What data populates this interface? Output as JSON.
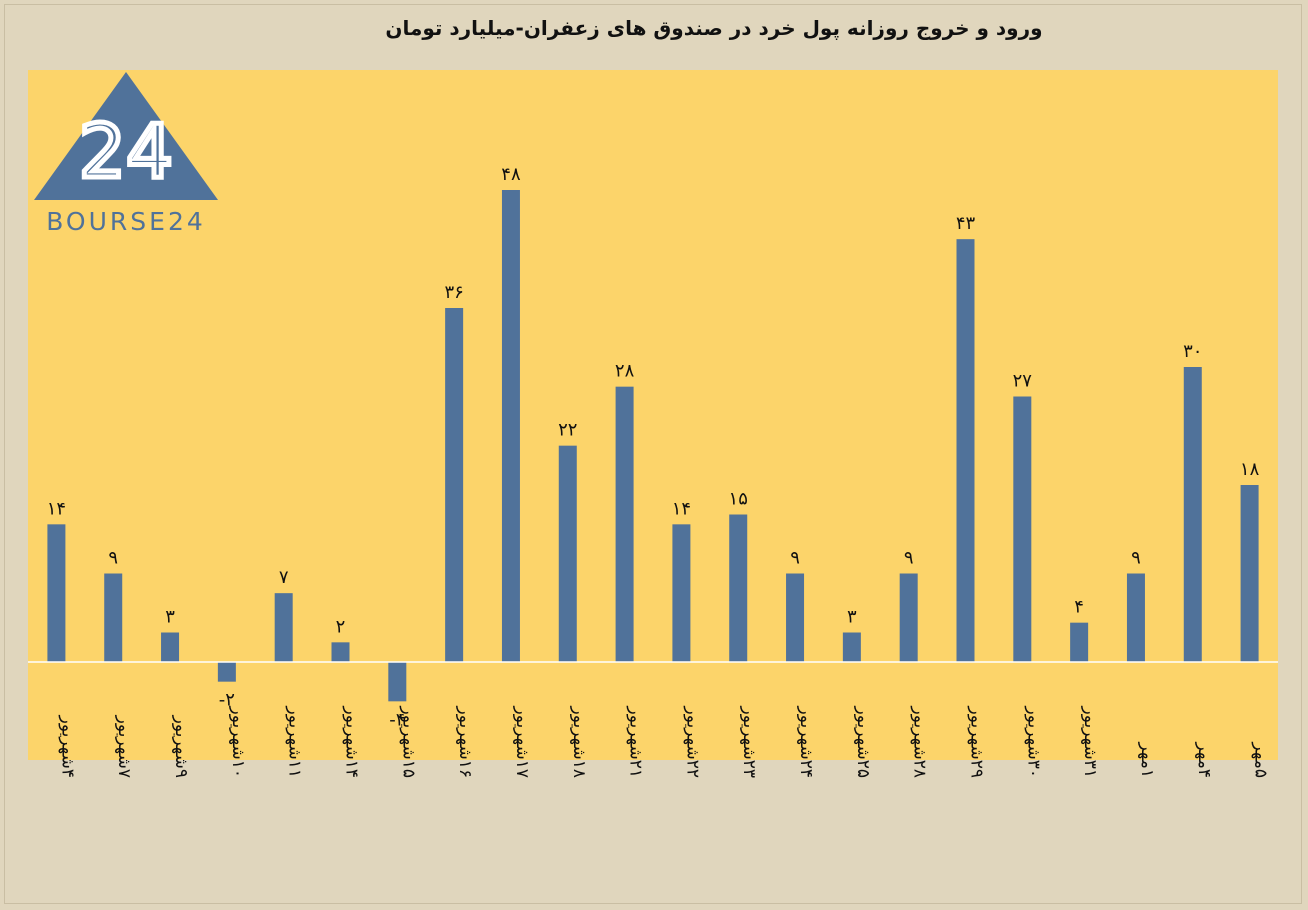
{
  "chart_data": {
    "type": "bar",
    "title": "ورود و خروج روزانه پول خرد در صندوق های زعفران-میلیارد تومان",
    "categories": [
      "۴شهریور",
      "۷شهریور",
      "۹شهریور",
      "۱۰شهریور",
      "۱۱شهریور",
      "۱۴شهریور",
      "۱۵شهریور",
      "۱۶شهریور",
      "۱۷شهریور",
      "۱۸شهریور",
      "۲۱شهریور",
      "۲۲شهریور",
      "۲۳شهریور",
      "۲۴شهریور",
      "۲۵شهریور",
      "۲۸شهریور",
      "۲۹شهریور",
      "۳۰شهریور",
      "۳۱شهریور",
      "۱مهر",
      "۴مهر",
      "۵مهر"
    ],
    "values": [
      14,
      9,
      3,
      -2,
      7,
      2,
      -4,
      36,
      48,
      22,
      28,
      14,
      15,
      9,
      3,
      9,
      43,
      27,
      4,
      9,
      30,
      18
    ],
    "data_labels": [
      "۱۴",
      "۹",
      "۳",
      "-۲",
      "۷",
      "۲",
      "-۴",
      "۳۶",
      "۴۸",
      "۲۲",
      "۲۸",
      "۱۴",
      "۱۵",
      "۹",
      "۳",
      "۹",
      "۴۳",
      "۲۷",
      "۴",
      "۹",
      "۳۰",
      "۱۸"
    ],
    "ylim": [
      -10,
      50
    ],
    "xlabel": "",
    "ylabel": "",
    "grid": false,
    "colors": {
      "bar": "#50729a",
      "plot_bg": "#fcd46a",
      "page_bg": "#e0d6bd",
      "zero_line": "#ffffff"
    }
  },
  "logo": {
    "text": "BOURSE24",
    "mark": "24"
  }
}
